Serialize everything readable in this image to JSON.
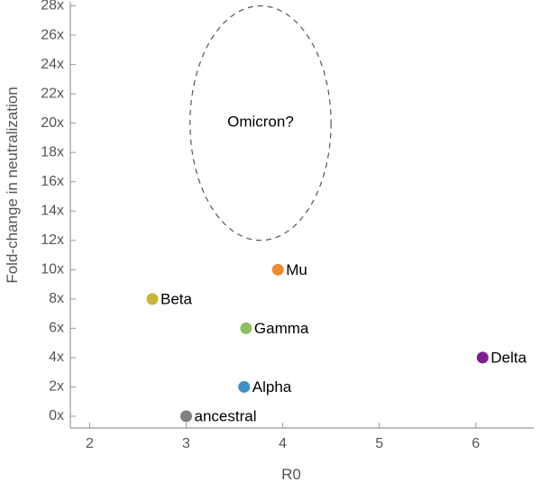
{
  "chart_data": {
    "type": "scatter",
    "xlabel": "R0",
    "ylabel": "Fold-change in neutralization",
    "xlim": [
      1.8,
      6.6
    ],
    "ylim": [
      -0.8,
      28.4
    ],
    "x_ticks": [
      {
        "value": 2,
        "label": "2"
      },
      {
        "value": 3,
        "label": "3"
      },
      {
        "value": 4,
        "label": "4"
      },
      {
        "value": 5,
        "label": "5"
      },
      {
        "value": 6,
        "label": "6"
      }
    ],
    "y_ticks": [
      {
        "value": 0,
        "label": "0x"
      },
      {
        "value": 2,
        "label": "2x"
      },
      {
        "value": 4,
        "label": "4x"
      },
      {
        "value": 6,
        "label": "6x"
      },
      {
        "value": 8,
        "label": "8x"
      },
      {
        "value": 10,
        "label": "10x"
      },
      {
        "value": 12,
        "label": "12x"
      },
      {
        "value": 14,
        "label": "14x"
      },
      {
        "value": 16,
        "label": "16x"
      },
      {
        "value": 18,
        "label": "18x"
      },
      {
        "value": 20,
        "label": "20x"
      },
      {
        "value": 22,
        "label": "22x"
      },
      {
        "value": 24,
        "label": "24x"
      },
      {
        "value": 26,
        "label": "26x"
      },
      {
        "value": 28,
        "label": "28x"
      }
    ],
    "grid": false,
    "points": [
      {
        "label": "ancestral",
        "x": 3.0,
        "y": 0,
        "color": "#808080"
      },
      {
        "label": "Alpha",
        "x": 3.6,
        "y": 2,
        "color": "#3f8fc7"
      },
      {
        "label": "Delta",
        "x": 6.07,
        "y": 4,
        "color": "#7b1f8f"
      },
      {
        "label": "Gamma",
        "x": 3.62,
        "y": 6,
        "color": "#8cc063"
      },
      {
        "label": "Beta",
        "x": 2.65,
        "y": 8,
        "color": "#c9b43c"
      },
      {
        "label": "Mu",
        "x": 3.95,
        "y": 10,
        "color": "#ee8a30"
      }
    ],
    "annotation": {
      "label": "Omicron?",
      "center_x": 3.77,
      "center_y": 20,
      "radius_x": 0.73,
      "radius_y": 8,
      "style": "dashed-ellipse"
    },
    "colors": {
      "axis": "#999999",
      "text": "#555555",
      "ellipse": "#555555"
    }
  }
}
